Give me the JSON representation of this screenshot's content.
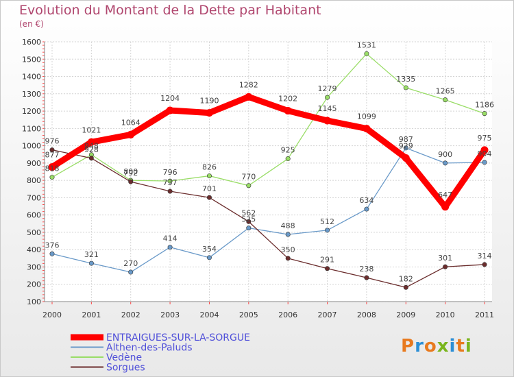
{
  "header": {
    "title": "Evolution du Montant de la Dette par Habitant",
    "subtitle": "(en €)"
  },
  "logo": {
    "text": "Proxiti"
  },
  "chart_data": {
    "type": "line",
    "title": "Evolution du Montant de la Dette par Habitant",
    "subtitle": "(en €)",
    "x": [
      "2000",
      "2001",
      "2002",
      "2003",
      "2004",
      "2005",
      "2006",
      "2007",
      "2008",
      "2009",
      "2010",
      "2011"
    ],
    "ylim": [
      100,
      1600
    ],
    "yticks": [
      100,
      200,
      300,
      400,
      500,
      600,
      700,
      800,
      900,
      1000,
      1100,
      1200,
      1300,
      1400,
      1500,
      1600
    ],
    "grid": true,
    "legend": "bottom-left",
    "series": [
      {
        "name": "ENTRAIGUES-SUR-LA-SORGUE",
        "color": "#ff0000",
        "values": [
          877,
          1021,
          1064,
          1204,
          1190,
          1282,
          1202,
          1145,
          1099,
          929,
          647,
          975
        ]
      },
      {
        "name": "Althen-des-Paluds",
        "color": "#6a9ac9",
        "values": [
          376,
          321,
          270,
          414,
          354,
          525,
          488,
          512,
          634,
          987,
          900,
          904
        ]
      },
      {
        "name": "Vedène",
        "color": "#99dd66",
        "values": [
          818,
          948,
          800,
          796,
          826,
          770,
          925,
          1279,
          1531,
          1335,
          1265,
          1186
        ]
      },
      {
        "name": "Sorgues",
        "color": "#6b2d2d",
        "values": [
          976,
          928,
          792,
          737,
          701,
          562,
          350,
          291,
          238,
          182,
          301,
          314
        ]
      }
    ]
  }
}
